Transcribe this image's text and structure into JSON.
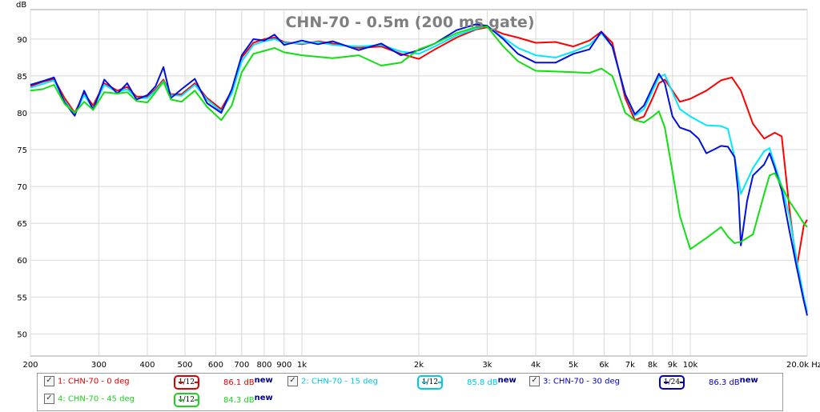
{
  "chart_data": {
    "type": "line",
    "title": "CHN-70 - 0.5m (200 ms gate)",
    "ylabel": "dB",
    "xunit": "Hz",
    "xscale": "log",
    "xlim": [
      200,
      20000
    ],
    "ylim": [
      47,
      94
    ],
    "grid": true,
    "y_ticks": [
      50,
      55,
      60,
      65,
      70,
      75,
      80,
      85,
      90
    ],
    "x_ticks": [
      {
        "v": 200,
        "label": "200"
      },
      {
        "v": 300,
        "label": "300"
      },
      {
        "v": 400,
        "label": "400"
      },
      {
        "v": 500,
        "label": "500"
      },
      {
        "v": 600,
        "label": "600"
      },
      {
        "v": 700,
        "label": "700"
      },
      {
        "v": 800,
        "label": "800"
      },
      {
        "v": 900,
        "label": "900"
      },
      {
        "v": 1000,
        "label": "1k"
      },
      {
        "v": 2000,
        "label": "2k"
      },
      {
        "v": 3000,
        "label": "3k"
      },
      {
        "v": 4000,
        "label": "4k"
      },
      {
        "v": 5000,
        "label": "5k"
      },
      {
        "v": 6000,
        "label": "6k"
      },
      {
        "v": 7000,
        "label": "7k"
      },
      {
        "v": 8000,
        "label": "8k"
      },
      {
        "v": 9000,
        "label": "9k"
      },
      {
        "v": 10000,
        "label": "10k"
      },
      {
        "v": 20000,
        "label": "20.0k Hz"
      }
    ],
    "series": [
      {
        "name": "1: CHN-70 - 0 deg",
        "color": "#ff0000",
        "smoothing": "1/12",
        "level": "86.1 dB",
        "points": [
          [
            200,
            83.6
          ],
          [
            215,
            84.2
          ],
          [
            230,
            84.6
          ],
          [
            245,
            82
          ],
          [
            260,
            80
          ],
          [
            275,
            82.6
          ],
          [
            290,
            81
          ],
          [
            310,
            84
          ],
          [
            335,
            83
          ],
          [
            355,
            83.5
          ],
          [
            375,
            82.2
          ],
          [
            400,
            82.2
          ],
          [
            420,
            83.2
          ],
          [
            440,
            84.5
          ],
          [
            460,
            82.5
          ],
          [
            490,
            82.5
          ],
          [
            530,
            84
          ],
          [
            570,
            82
          ],
          [
            620,
            80.5
          ],
          [
            660,
            83
          ],
          [
            700,
            87.5
          ],
          [
            750,
            89.5
          ],
          [
            800,
            90
          ],
          [
            850,
            90.2
          ],
          [
            900,
            89.6
          ],
          [
            1000,
            89.3
          ],
          [
            1100,
            89.7
          ],
          [
            1200,
            89.4
          ],
          [
            1400,
            88.8
          ],
          [
            1600,
            89
          ],
          [
            1800,
            88
          ],
          [
            2000,
            87.3
          ],
          [
            2200,
            88.6
          ],
          [
            2500,
            90.2
          ],
          [
            2800,
            91.3
          ],
          [
            3000,
            91.6
          ],
          [
            3300,
            90.7
          ],
          [
            3600,
            90.2
          ],
          [
            4000,
            89.5
          ],
          [
            4500,
            89.6
          ],
          [
            5000,
            89
          ],
          [
            5500,
            89.8
          ],
          [
            5900,
            91
          ],
          [
            6300,
            89.5
          ],
          [
            6800,
            82
          ],
          [
            7200,
            79
          ],
          [
            7600,
            79.5
          ],
          [
            8000,
            82
          ],
          [
            8300,
            84
          ],
          [
            8600,
            84.5
          ],
          [
            9000,
            83
          ],
          [
            9400,
            81.5
          ],
          [
            10000,
            81.9
          ],
          [
            11000,
            83
          ],
          [
            12000,
            84.4
          ],
          [
            12800,
            84.8
          ],
          [
            13500,
            83
          ],
          [
            14500,
            78.5
          ],
          [
            15500,
            76.5
          ],
          [
            16500,
            77.3
          ],
          [
            17200,
            76.8
          ],
          [
            18000,
            67
          ],
          [
            18800,
            59
          ],
          [
            19600,
            64.7
          ],
          [
            20000,
            65.5
          ]
        ]
      },
      {
        "name": "2: CHN-70 - 15 deg",
        "color": "#00e8ff",
        "smoothing": "1/12",
        "level": "85.8 dB",
        "points": [
          [
            200,
            83.4
          ],
          [
            215,
            83.9
          ],
          [
            230,
            84.4
          ],
          [
            245,
            81.6
          ],
          [
            260,
            79.8
          ],
          [
            275,
            82.4
          ],
          [
            290,
            80.6
          ],
          [
            310,
            83.8
          ],
          [
            335,
            82.8
          ],
          [
            355,
            83.2
          ],
          [
            375,
            82
          ],
          [
            400,
            82
          ],
          [
            420,
            83
          ],
          [
            440,
            84.3
          ],
          [
            460,
            82.4
          ],
          [
            490,
            82.3
          ],
          [
            530,
            83.8
          ],
          [
            570,
            81.8
          ],
          [
            620,
            80.2
          ],
          [
            660,
            82.6
          ],
          [
            700,
            87
          ],
          [
            750,
            89.2
          ],
          [
            800,
            89.7
          ],
          [
            850,
            90
          ],
          [
            900,
            89.5
          ],
          [
            1000,
            89.4
          ],
          [
            1100,
            89.6
          ],
          [
            1200,
            89.2
          ],
          [
            1400,
            89
          ],
          [
            1600,
            89.2
          ],
          [
            1800,
            88.3
          ],
          [
            2000,
            88
          ],
          [
            2200,
            89
          ],
          [
            2500,
            90.5
          ],
          [
            2800,
            91.4
          ],
          [
            3000,
            91.8
          ],
          [
            3300,
            90.2
          ],
          [
            3600,
            88.8
          ],
          [
            4000,
            87.8
          ],
          [
            4500,
            87.5
          ],
          [
            5000,
            88.3
          ],
          [
            5500,
            89.2
          ],
          [
            5900,
            90.8
          ],
          [
            6300,
            89
          ],
          [
            6800,
            82.5
          ],
          [
            7200,
            79.6
          ],
          [
            7600,
            80.5
          ],
          [
            8000,
            83
          ],
          [
            8300,
            84.8
          ],
          [
            8600,
            85.2
          ],
          [
            9000,
            82.8
          ],
          [
            9400,
            80.5
          ],
          [
            10000,
            79.5
          ],
          [
            11000,
            78.3
          ],
          [
            12000,
            78.2
          ],
          [
            12500,
            77.8
          ],
          [
            13000,
            74
          ],
          [
            13500,
            69
          ],
          [
            14500,
            72.5
          ],
          [
            15500,
            74.8
          ],
          [
            16000,
            75.2
          ],
          [
            16500,
            73
          ],
          [
            17200,
            70
          ],
          [
            18000,
            66
          ],
          [
            18800,
            60
          ],
          [
            19600,
            55
          ],
          [
            20000,
            53
          ]
        ]
      },
      {
        "name": "3: CHN-70 - 30 deg",
        "color": "#0010e0",
        "smoothing": "1/24",
        "level": "86.3 dB",
        "points": [
          [
            200,
            83.8
          ],
          [
            215,
            84.3
          ],
          [
            230,
            84.8
          ],
          [
            245,
            81.4
          ],
          [
            260,
            79.6
          ],
          [
            275,
            83
          ],
          [
            290,
            80.4
          ],
          [
            310,
            84.5
          ],
          [
            335,
            82.6
          ],
          [
            355,
            84
          ],
          [
            375,
            81.8
          ],
          [
            400,
            82.4
          ],
          [
            420,
            83.6
          ],
          [
            440,
            86.2
          ],
          [
            460,
            82
          ],
          [
            490,
            83.2
          ],
          [
            530,
            84.6
          ],
          [
            570,
            81.3
          ],
          [
            620,
            80
          ],
          [
            660,
            83.2
          ],
          [
            700,
            87.8
          ],
          [
            750,
            90
          ],
          [
            800,
            89.8
          ],
          [
            850,
            90.6
          ],
          [
            900,
            89.2
          ],
          [
            1000,
            89.8
          ],
          [
            1100,
            89.3
          ],
          [
            1200,
            89.7
          ],
          [
            1400,
            88.5
          ],
          [
            1600,
            89.4
          ],
          [
            1800,
            87.8
          ],
          [
            2000,
            88.5
          ],
          [
            2200,
            89.4
          ],
          [
            2500,
            91.2
          ],
          [
            2800,
            92
          ],
          [
            3000,
            91.8
          ],
          [
            3300,
            90
          ],
          [
            3600,
            88
          ],
          [
            4000,
            86.8
          ],
          [
            4500,
            86.8
          ],
          [
            5000,
            88
          ],
          [
            5500,
            88.6
          ],
          [
            5900,
            91
          ],
          [
            6300,
            89
          ],
          [
            6800,
            82.5
          ],
          [
            7200,
            79.8
          ],
          [
            7600,
            81
          ],
          [
            8000,
            83.5
          ],
          [
            8300,
            85.3
          ],
          [
            8600,
            84
          ],
          [
            9000,
            79.5
          ],
          [
            9400,
            78
          ],
          [
            10000,
            77.5
          ],
          [
            10500,
            76.5
          ],
          [
            11000,
            74.5
          ],
          [
            11500,
            75
          ],
          [
            12000,
            75.5
          ],
          [
            12500,
            75.4
          ],
          [
            13000,
            74
          ],
          [
            13300,
            69
          ],
          [
            13500,
            62
          ],
          [
            14000,
            68
          ],
          [
            14500,
            71.5
          ],
          [
            15500,
            73
          ],
          [
            16000,
            74.5
          ],
          [
            16500,
            72.5
          ],
          [
            17200,
            69.5
          ],
          [
            18000,
            64
          ],
          [
            18800,
            59
          ],
          [
            19600,
            54.5
          ],
          [
            20000,
            52.5
          ]
        ]
      },
      {
        "name": "4: CHN-70 - 45 deg",
        "color": "#10e010",
        "smoothing": "1/12",
        "level": "84.3 dB",
        "points": [
          [
            200,
            83
          ],
          [
            215,
            83.2
          ],
          [
            230,
            83.8
          ],
          [
            245,
            81.2
          ],
          [
            260,
            80
          ],
          [
            275,
            81.5
          ],
          [
            290,
            80.4
          ],
          [
            310,
            82.8
          ],
          [
            335,
            82.6
          ],
          [
            355,
            82.8
          ],
          [
            375,
            81.6
          ],
          [
            400,
            81.4
          ],
          [
            420,
            82.8
          ],
          [
            440,
            84.2
          ],
          [
            460,
            81.8
          ],
          [
            490,
            81.5
          ],
          [
            530,
            83
          ],
          [
            570,
            80.8
          ],
          [
            620,
            79
          ],
          [
            660,
            81
          ],
          [
            700,
            85.5
          ],
          [
            750,
            88
          ],
          [
            800,
            88.4
          ],
          [
            850,
            88.8
          ],
          [
            900,
            88.2
          ],
          [
            1000,
            87.8
          ],
          [
            1100,
            87.6
          ],
          [
            1200,
            87.4
          ],
          [
            1400,
            87.8
          ],
          [
            1600,
            86.4
          ],
          [
            1800,
            86.8
          ],
          [
            2000,
            88.6
          ],
          [
            2200,
            89.4
          ],
          [
            2500,
            90.8
          ],
          [
            2800,
            91.6
          ],
          [
            3000,
            91.7
          ],
          [
            3300,
            89
          ],
          [
            3600,
            87
          ],
          [
            4000,
            85.7
          ],
          [
            4500,
            85.6
          ],
          [
            5000,
            85.5
          ],
          [
            5500,
            85.4
          ],
          [
            5900,
            86
          ],
          [
            6300,
            85
          ],
          [
            6800,
            80
          ],
          [
            7200,
            79
          ],
          [
            7600,
            78.7
          ],
          [
            8000,
            79.5
          ],
          [
            8300,
            80.2
          ],
          [
            8600,
            78
          ],
          [
            9000,
            72
          ],
          [
            9400,
            66
          ],
          [
            10000,
            61.5
          ],
          [
            11000,
            63
          ],
          [
            12000,
            64.5
          ],
          [
            12500,
            63.2
          ],
          [
            13000,
            62.3
          ],
          [
            13500,
            62.5
          ],
          [
            14500,
            63.5
          ],
          [
            15500,
            69
          ],
          [
            16000,
            71.5
          ],
          [
            16500,
            71.8
          ],
          [
            17200,
            70
          ],
          [
            18000,
            68
          ],
          [
            18800,
            66.5
          ],
          [
            19600,
            65
          ],
          [
            20000,
            64.5
          ]
        ]
      }
    ]
  },
  "legend": [
    {
      "check": "✓",
      "label": "1: CHN-70 - 0 deg",
      "color": "#e00000",
      "smoothing_label": "1/12",
      "level": "86.1 dB",
      "new": "new"
    },
    {
      "check": "✓",
      "label": "2: CHN-70 - 15 deg",
      "color": "#00c8e8",
      "smoothing_label": "1/12",
      "level": "85.8 dB",
      "new": "new"
    },
    {
      "check": "✓",
      "label": "3: CHN-70 - 30 deg",
      "color": "#0000c8",
      "smoothing_label": "1/24",
      "level": "86.3 dB",
      "new": "new"
    },
    {
      "check": "✓",
      "label": "4: CHN-70 - 45 deg",
      "color": "#20d020",
      "smoothing_label": "1/12",
      "level": "84.3 dB",
      "new": "new"
    }
  ]
}
